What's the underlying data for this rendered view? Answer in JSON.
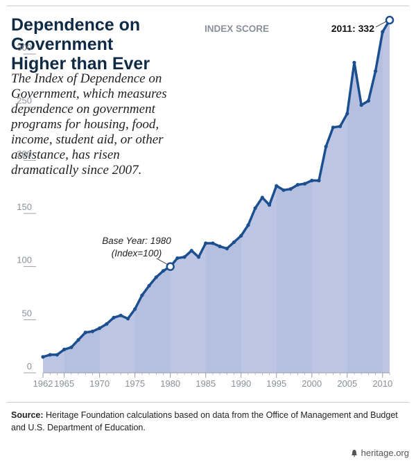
{
  "title": "Dependence on Government Higher than Ever",
  "subtitle": "The Index of Dependence on Government, which measures dependence on government programs for housing, food, income, student aid, or other assistance, has risen dramatically since 2007.",
  "source_label": "Source:",
  "source_text": "Heritage Foundation calculations based on data from the Office of Management and Budget and U.S. Department of Education.",
  "brand": "heritage.org",
  "chart_data": {
    "type": "area",
    "ylabel": "INDEX SCORE",
    "xlabel": "",
    "xlim": [
      1962,
      2011
    ],
    "ylim": [
      0,
      332
    ],
    "yticks": [
      0,
      50,
      100,
      150,
      200,
      250,
      300
    ],
    "xticks": [
      1962,
      1965,
      1970,
      1975,
      1980,
      1985,
      1990,
      1995,
      2000,
      2005,
      2010
    ],
    "x": [
      1962,
      1963,
      1964,
      1965,
      1966,
      1967,
      1968,
      1969,
      1970,
      1971,
      1972,
      1973,
      1974,
      1975,
      1976,
      1977,
      1978,
      1979,
      1980,
      1981,
      1982,
      1983,
      1984,
      1985,
      1986,
      1987,
      1988,
      1989,
      1990,
      1991,
      1992,
      1993,
      1994,
      1995,
      1996,
      1997,
      1998,
      1999,
      2000,
      2001,
      2002,
      2003,
      2004,
      2005,
      2006,
      2007,
      2008,
      2009,
      2010,
      2011
    ],
    "values": [
      15,
      17,
      17,
      22,
      24,
      31,
      38,
      39,
      42,
      46,
      52,
      54,
      51,
      60,
      73,
      82,
      90,
      96,
      100,
      108,
      109,
      115,
      109,
      122,
      122,
      119,
      117,
      123,
      129,
      139,
      155,
      165,
      158,
      176,
      172,
      173,
      177,
      178,
      181,
      181,
      213,
      231,
      232,
      244,
      292,
      252,
      256,
      284,
      321,
      332
    ],
    "annotations": [
      {
        "label": "Base Year: 1980",
        "label2": "(Index=100)",
        "x": 1980,
        "y": 100
      },
      {
        "label": "2011: 332",
        "x": 2011,
        "y": 332
      }
    ],
    "grid": false,
    "colors": {
      "line": "#1c4f8f",
      "fill": "#bcc6e4",
      "band": "#aeb9dd",
      "axis": "#9aa0aa",
      "tick_text": "#8a8f98"
    }
  }
}
